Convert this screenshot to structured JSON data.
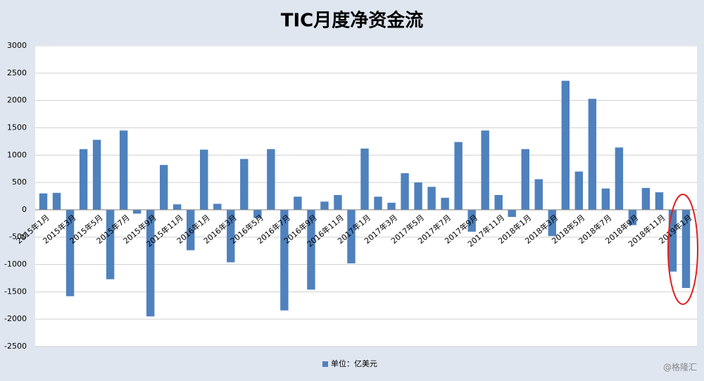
{
  "chart_data": {
    "type": "bar",
    "title": "TIC月度净资金流",
    "categories": [
      "2015年1月",
      null,
      "2015年3月",
      null,
      "2015年5月",
      null,
      "2015年7月",
      null,
      "2015年9月",
      null,
      "2015年11月",
      null,
      "2016年1月",
      null,
      "2016年3月",
      null,
      "2016年5月",
      null,
      "2016年7月",
      null,
      "2016年9月",
      null,
      "2016年11月",
      null,
      "2017年1月",
      null,
      "2017年3月",
      null,
      "2017年5月",
      null,
      "2017年7月",
      null,
      "2017年9月",
      null,
      "2017年11月",
      null,
      "2018年1月",
      null,
      "2018年3月",
      null,
      "2018年5月",
      null,
      "2018年7月",
      null,
      "2018年9月",
      null,
      "2018年11月",
      null,
      "2019年1月"
    ],
    "series": [
      {
        "name": "单位：亿美元",
        "color": "#4f81bd",
        "values": [
          300,
          310,
          -1580,
          1110,
          1280,
          -1270,
          1450,
          -70,
          -1950,
          820,
          100,
          -740,
          1100,
          110,
          -960,
          930,
          -150,
          1110,
          -1840,
          240,
          -1460,
          150,
          270,
          -980,
          1120,
          240,
          130,
          670,
          500,
          420,
          220,
          1240,
          -400,
          1450,
          270,
          -130,
          1110,
          560,
          -480,
          2360,
          700,
          2030,
          390,
          1140,
          -280,
          400,
          320,
          -1130,
          -1430
        ]
      }
    ],
    "ylim": [
      -2500,
      3000
    ],
    "yticks": [
      -2500,
      -2000,
      -1500,
      -1000,
      -500,
      0,
      500,
      1000,
      1500,
      2000,
      2500,
      3000
    ],
    "grid": true,
    "legend": "bottom",
    "watermark": "@格隆汇"
  }
}
